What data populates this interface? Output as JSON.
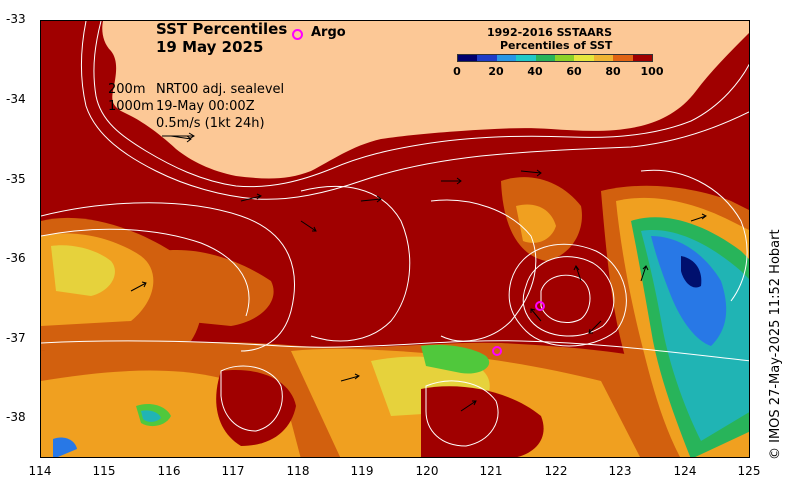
{
  "title": {
    "line1": "SST Percentiles",
    "line2": "19 May 2025"
  },
  "argo_label": "Argo",
  "colorbar": {
    "title_line1": "1992-2016 SSTAARS",
    "title_line2": "Percentiles of SST",
    "ticks": [
      "0",
      "20",
      "40",
      "60",
      "80",
      "100"
    ],
    "colors": [
      "#00006e",
      "#1e3cc8",
      "#2896e6",
      "#20c8c8",
      "#28b45a",
      "#8cd228",
      "#e6e63c",
      "#f0b432",
      "#e06414",
      "#a00000"
    ]
  },
  "legend": {
    "contour_200m": "200m",
    "contour_1000m": "1000m",
    "sealevel": "NRT00 adj. sealevel",
    "time": "19-May 00:00Z",
    "scale": "0.5m/s (1kt 24h)"
  },
  "axes": {
    "lon_ticks": [
      "114",
      "115",
      "116",
      "117",
      "118",
      "119",
      "120",
      "121",
      "122",
      "123",
      "124",
      "125"
    ],
    "lat_ticks": [
      "-33",
      "-34",
      "-35",
      "-36",
      "-37",
      "-38"
    ]
  },
  "stamp": "© IMOS 27-May-2025 11:52 Hobart",
  "palette": {
    "land": "#fcc896",
    "high": "#a00000",
    "warm": "#d2600e",
    "mid": "#f0a020",
    "yellow": "#e6d23c",
    "green": "#50c83c",
    "cyan": "#20b4b4",
    "blue": "#2878e6",
    "navy": "#00106e"
  }
}
